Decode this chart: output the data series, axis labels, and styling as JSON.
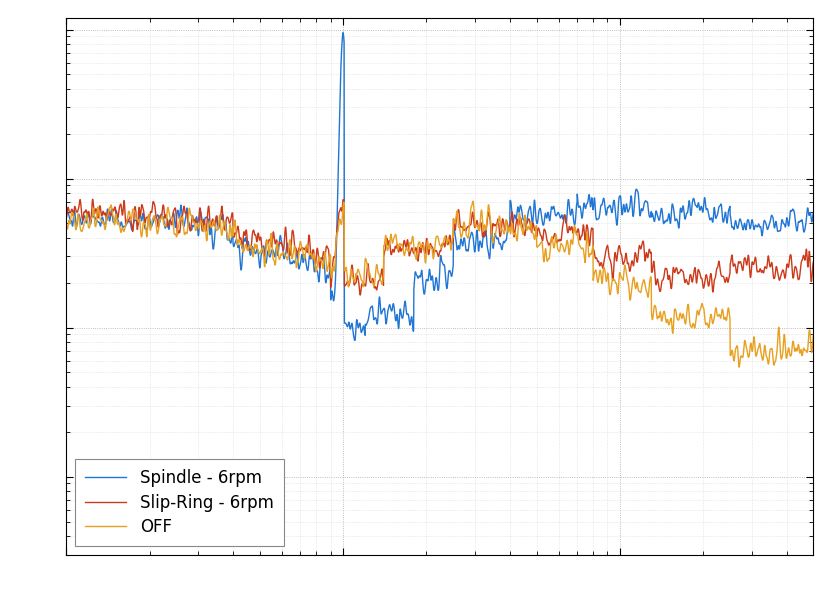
{
  "line_colors": [
    "#2176d4",
    "#cc3a1a",
    "#e8a020"
  ],
  "line_labels": [
    "Spindle - 6rpm",
    "Slip-Ring - 6rpm",
    "OFF"
  ],
  "line_width": 1.0,
  "xlim": [
    1,
    500
  ],
  "ylim": [
    0.003,
    12
  ],
  "background_color": "#ffffff",
  "grid_color": "#aaaaaa",
  "legend_loc": "lower left",
  "legend_fontsize": 12,
  "n_points": 3000,
  "seed_spindle": 1,
  "seed_slipring": 2,
  "seed_off": 3
}
